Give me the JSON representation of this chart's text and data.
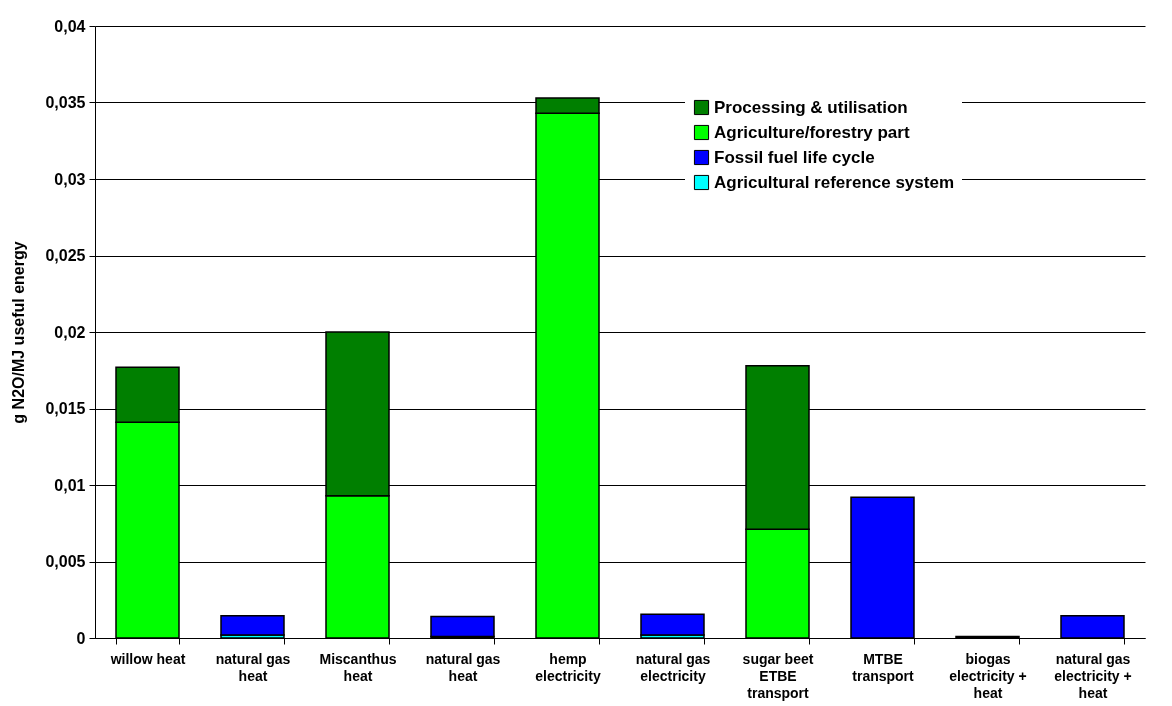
{
  "chart_data": {
    "type": "bar",
    "stacked": true,
    "ylabel": "g N2O/MJ useful energy",
    "categories": [
      "willow heat",
      "natural gas heat",
      "Miscanthus heat",
      "natural gas heat",
      "hemp electricity",
      "natural gas electricity",
      "sugar beet ETBE transport",
      "MTBE transport",
      "biogas electricity + heat",
      "natural gas electricity + heat"
    ],
    "series": [
      {
        "name": "Agricultural reference system",
        "color": "#00ffff",
        "values": [
          null,
          0.0002,
          null,
          0.0001,
          null,
          0.0002,
          null,
          null,
          null,
          null
        ]
      },
      {
        "name": "Fossil fuel life cycle",
        "color": "#0000ff",
        "values": [
          null,
          0.00125,
          null,
          0.0013,
          null,
          0.00135,
          null,
          0.0092,
          null,
          0.00145
        ]
      },
      {
        "name": "Agriculture/forestry part",
        "color": "#00ff00",
        "values": [
          0.0141,
          null,
          0.0093,
          null,
          0.0343,
          null,
          0.0071,
          null,
          null,
          null
        ]
      },
      {
        "name": "Processing & utilisation",
        "color": "#007f00",
        "values": [
          0.0036,
          null,
          0.0107,
          null,
          0.001,
          null,
          0.0107,
          null,
          0.0001,
          null
        ]
      }
    ],
    "ylim": [
      0,
      0.04
    ],
    "yticks": [
      0,
      {
        "value": 0.005,
        "label": "0,005"
      },
      {
        "value": 0.01,
        "label": "0,01"
      },
      {
        "value": 0.015,
        "label": "0,015"
      },
      {
        "value": 0.02,
        "label": "0,02"
      },
      {
        "value": 0.025,
        "label": "0,025"
      },
      {
        "value": 0.03,
        "label": "0,03"
      },
      {
        "value": 0.035,
        "label": "0,035"
      },
      {
        "value": 0.04,
        "label": "0,04"
      }
    ],
    "grid": "y",
    "legend": "top right"
  }
}
